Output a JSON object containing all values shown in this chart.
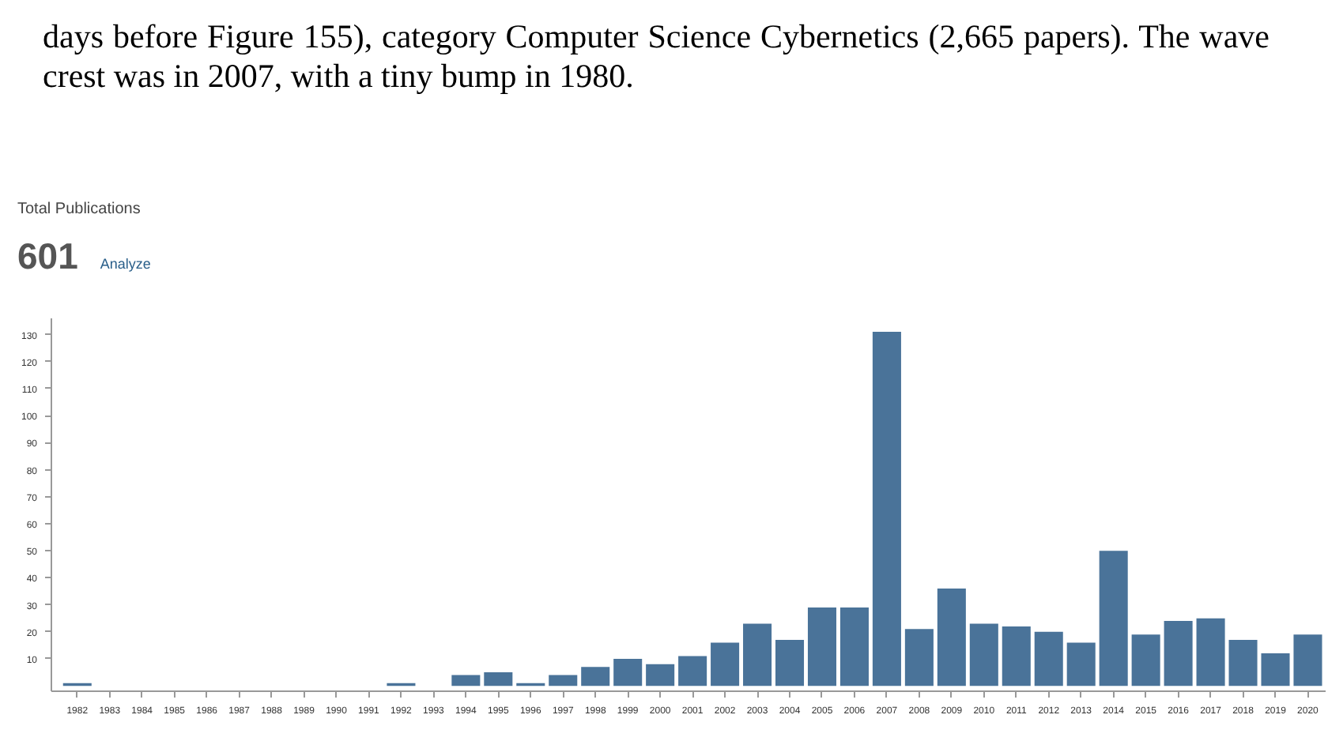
{
  "chart_data": {
    "type": "bar",
    "title": "Total Publications",
    "subtitle": "601",
    "annotations": [
      "days before Figure 155), category Computer Science Cybernetics (2,665 papers).  The wave crest was in 2007, with a tiny bump in 1980.",
      "Analyze"
    ],
    "categories": [
      "1982",
      "1983",
      "1984",
      "1985",
      "1986",
      "1987",
      "1988",
      "1989",
      "1990",
      "1991",
      "1992",
      "1993",
      "1994",
      "1995",
      "1996",
      "1997",
      "1998",
      "1999",
      "2000",
      "2001",
      "2002",
      "2003",
      "2004",
      "2005",
      "2006",
      "2007",
      "2008",
      "2009",
      "2010",
      "2011",
      "2012",
      "2013",
      "2014",
      "2015",
      "2016",
      "2017",
      "2018",
      "2019",
      "2020"
    ],
    "values": [
      1,
      0,
      0,
      0,
      0,
      0,
      0,
      0,
      0,
      0,
      1,
      0,
      4,
      5,
      1,
      4,
      7,
      10,
      8,
      11,
      16,
      23,
      17,
      29,
      29,
      131,
      21,
      36,
      23,
      22,
      20,
      16,
      50,
      19,
      24,
      25,
      17,
      12,
      19
    ],
    "color": "#4a7399",
    "ylim": [
      -2,
      136
    ],
    "yticks": [
      10,
      20,
      30,
      40,
      50,
      60,
      70,
      80,
      90,
      100,
      110,
      120,
      130
    ],
    "grid": false
  }
}
